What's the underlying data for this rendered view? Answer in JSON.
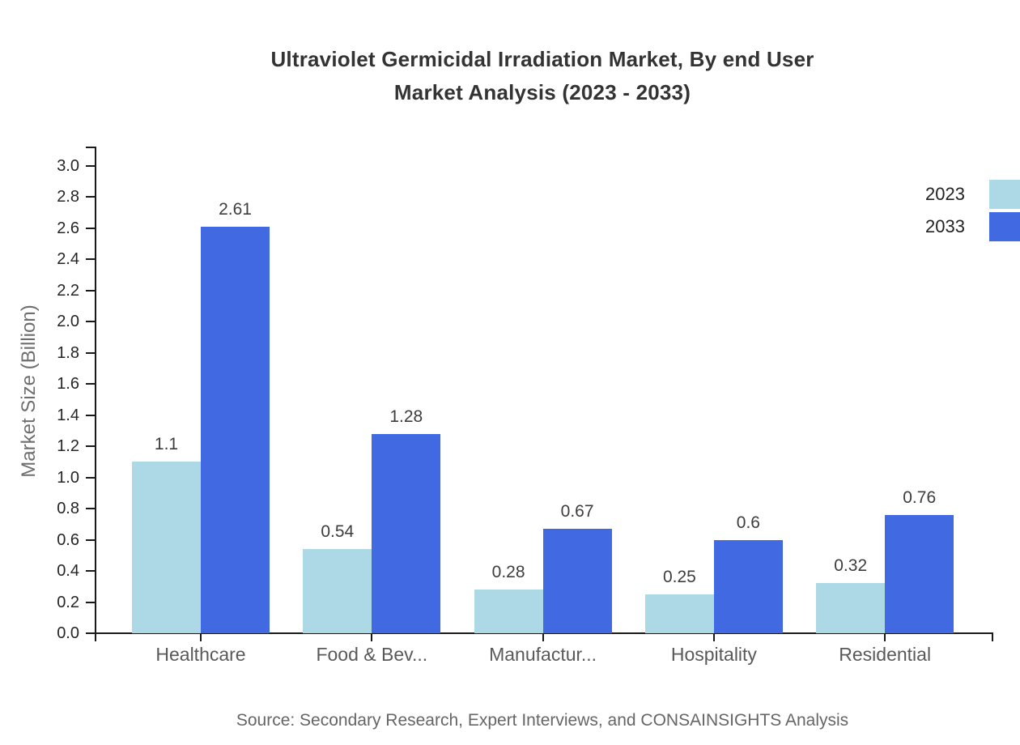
{
  "title": {
    "line1": "Ultraviolet Germicidal Irradiation Market, By end User",
    "line2": "Market Analysis (2023 - 2033)"
  },
  "source_note": "Source: Secondary Research, Expert Interviews, and CONSAINSIGHTS Analysis",
  "chart_data": {
    "type": "bar",
    "title": "Ultraviolet Germicidal Irradiation Market, By end User Market Analysis (2023 - 2033)",
    "categories": [
      "Healthcare",
      "Food & Bev...",
      "Manufactur...",
      "Hospitality",
      "Residential"
    ],
    "series": [
      {
        "name": "2023",
        "color": "#ADD8E6",
        "values": [
          1.1,
          0.54,
          0.28,
          0.25,
          0.32
        ]
      },
      {
        "name": "2033",
        "color": "#4169E1",
        "values": [
          2.61,
          1.28,
          0.67,
          0.6,
          0.76
        ]
      }
    ],
    "xlabel": "",
    "ylabel": "Market Size (Billion)",
    "ylim": [
      0.0,
      3.0
    ],
    "ytick_step": 0.2,
    "ytick_format_decimals": 1,
    "grid": false,
    "legend_position": "top-right",
    "value_labels_shown": true
  }
}
